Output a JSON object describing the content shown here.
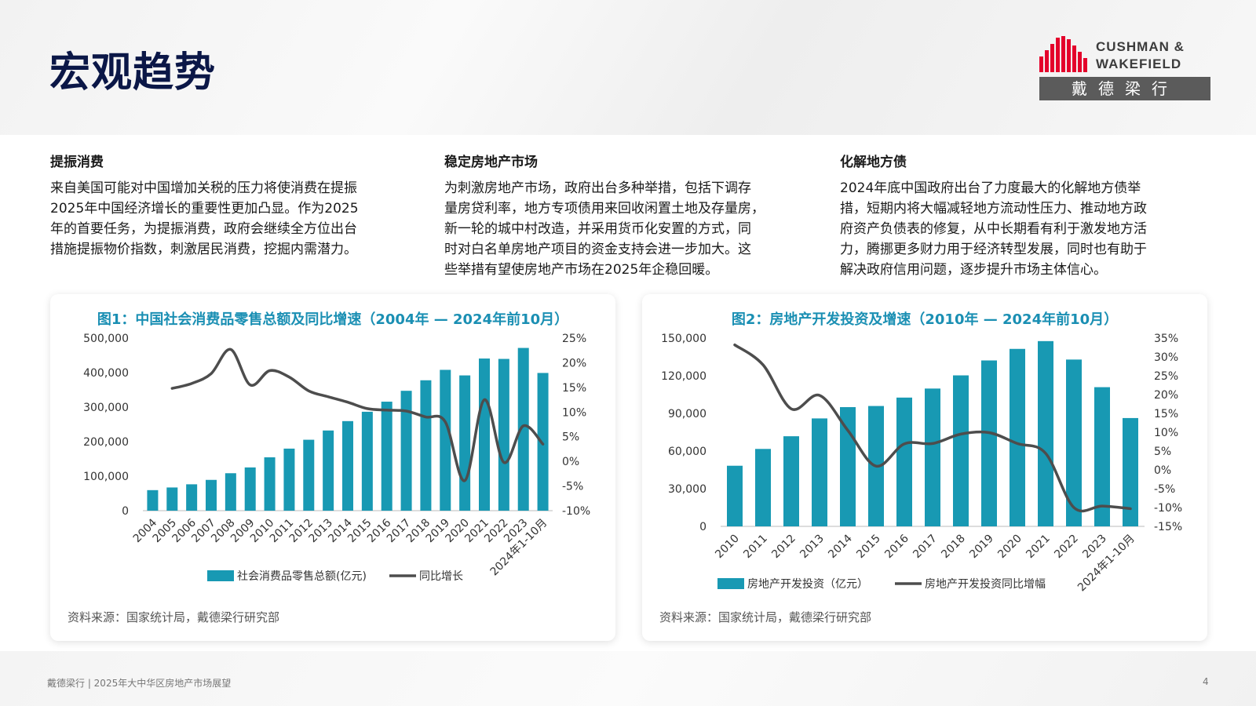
{
  "page": {
    "title": "宏观趋势",
    "logo": {
      "line1": "CUSHMAN &",
      "line2": "WAKEFIELD",
      "cn": "戴德梁行"
    },
    "footer": {
      "left": "戴德梁行 | 2025年大中华区房地产市场展望",
      "page_no": "4"
    },
    "colors": {
      "accent": "#1a8fb3",
      "bar": "#1899b3",
      "line": "#4d4d4d",
      "brand_red": "#e4002b",
      "title": "#0b1747"
    }
  },
  "columns": [
    {
      "heading": "提振消费",
      "lines": [
        "来自美国可能对中国增加关税的压力将使消费在提振",
        "2025年中国经济增长的重要性更加凸显。作为2025",
        "年的首要任务，为提振消费，政府会继续全方位出台",
        "措施提振物价指数，刺激居民消费，挖掘内需潜力。"
      ]
    },
    {
      "heading": "稳定房地产市场",
      "lines": [
        "为刺激房地产市场，政府出台多种举措，包括下调存",
        "量房贷利率，地方专项债用来回收闲置土地及存量房，",
        "新一轮的城中村改造，并采用货币化安置的方式，同",
        "时对白名单房地产项目的资金支持会进一步加大。这",
        "些举措有望使房地产市场在2025年企稳回暖。"
      ]
    },
    {
      "heading": "化解地方债",
      "lines": [
        "2024年底中国政府出台了力度最大的化解地方债举",
        "措，短期内将大幅减轻地方流动性压力、推动地方政",
        "府资产负债表的修复，从中长期看有利于激发地方活",
        "力，腾挪更多财力用于经济转型发展，同时也有助于",
        "解决政府信用问题，逐步提升市场主体信心。"
      ]
    }
  ],
  "chart_data": [
    {
      "type": "bar+line",
      "title": "图1：中国社会消费品零售总额及同比增速（2004年 — 2024年前10月）",
      "categories": [
        "2004",
        "2005",
        "2006",
        "2007",
        "2008",
        "2009",
        "2010",
        "2011",
        "2012",
        "2013",
        "2014",
        "2015",
        "2016",
        "2017",
        "2018",
        "2019",
        "2020",
        "2021",
        "2022",
        "2023",
        "2024年1-10月"
      ],
      "series": [
        {
          "name": "社会消费品零售总额(亿元)",
          "kind": "bar",
          "axis": "left",
          "values": [
            59500,
            67200,
            76400,
            89200,
            108500,
            125300,
            154600,
            179800,
            205500,
            232300,
            259500,
            286600,
            315800,
            347300,
            377800,
            408000,
            391900,
            440800,
            439700,
            471500,
            399000
          ]
        },
        {
          "name": "同比增长",
          "kind": "line",
          "axis": "right",
          "values": [
            null,
            14.8,
            15.8,
            17.8,
            22.7,
            15.5,
            18.4,
            17.1,
            14.3,
            13.1,
            12.0,
            10.7,
            10.4,
            10.2,
            9.0,
            8.0,
            -3.9,
            12.5,
            -0.2,
            7.2,
            3.5
          ]
        }
      ],
      "yleft": {
        "min": 0,
        "max": 500000,
        "ticks": [
          "0",
          "100,000",
          "200,000",
          "300,000",
          "400,000",
          "500,000"
        ]
      },
      "yright": {
        "min": -10,
        "max": 25,
        "ticks": [
          "-10%",
          "-5%",
          "0%",
          "5%",
          "10%",
          "15%",
          "20%",
          "25%"
        ]
      },
      "grid": false,
      "legend": "bottom",
      "source": "资料来源：国家统计局，戴德梁行研究部"
    },
    {
      "type": "bar+line",
      "title": "图2：房地产开发投资及增速（2010年 — 2024年前10月）",
      "categories": [
        "2010",
        "2011",
        "2012",
        "2013",
        "2014",
        "2015",
        "2016",
        "2017",
        "2018",
        "2019",
        "2020",
        "2021",
        "2022",
        "2023",
        "2024年1-10月"
      ],
      "series": [
        {
          "name": "房地产开发投资（亿元）",
          "kind": "bar",
          "axis": "left",
          "values": [
            48300,
            61700,
            71800,
            86000,
            95000,
            95900,
            102600,
            109800,
            120300,
            132200,
            141400,
            147600,
            132900,
            110900,
            86300
          ]
        },
        {
          "name": "房地产开发投资同比增幅",
          "kind": "line",
          "axis": "right",
          "values": [
            33.2,
            27.9,
            16.2,
            19.8,
            10.5,
            1.0,
            6.9,
            7.0,
            9.5,
            9.9,
            7.0,
            4.4,
            -10.0,
            -9.6,
            -10.3
          ]
        }
      ],
      "yleft": {
        "min": 0,
        "max": 150000,
        "ticks": [
          "0",
          "30,000",
          "60,000",
          "90,000",
          "120,000",
          "150,000"
        ]
      },
      "yright": {
        "min": -15,
        "max": 35,
        "ticks": [
          "-15%",
          "-10%",
          "-5%",
          "0%",
          "5%",
          "10%",
          "15%",
          "20%",
          "25%",
          "30%",
          "35%"
        ]
      },
      "grid": false,
      "legend": "bottom",
      "source": "资料来源：国家统计局，戴德梁行研究部"
    }
  ]
}
